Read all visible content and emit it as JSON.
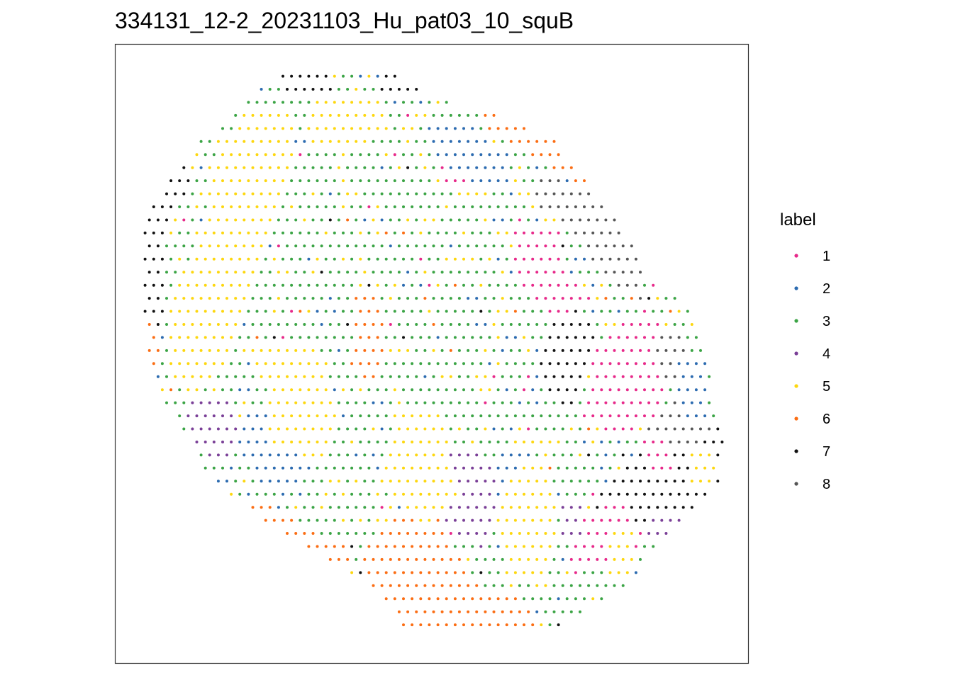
{
  "chart_data": {
    "type": "scatter",
    "title": "334131_12-2_20231103_Hu_pat03_10_squB",
    "xlabel": "",
    "ylabel": "",
    "axes_visible": false,
    "grid": false,
    "panel_border": true,
    "legend": {
      "title": "label",
      "position": "right",
      "entries": [
        {
          "label": "1",
          "color": "#e7298a"
        },
        {
          "label": "2",
          "color": "#2c6bb0"
        },
        {
          "label": "3",
          "color": "#3ba445"
        },
        {
          "label": "4",
          "color": "#7a3f97"
        },
        {
          "label": "5",
          "color": "#fdd70f"
        },
        {
          "label": "6",
          "color": "#fb6d13"
        },
        {
          "label": "7",
          "color": "#111111"
        },
        {
          "label": "8",
          "color": "#555555"
        }
      ]
    },
    "xlim": [
      0,
      100
    ],
    "ylim": [
      0,
      100
    ],
    "grid_spacing_x": 1.36,
    "grid_spacing_y": 2.11,
    "tissue_outline": [
      [
        27.1,
        95.9
      ],
      [
        34.3,
        96.4
      ],
      [
        44.3,
        94.9
      ],
      [
        53.5,
        90.3
      ],
      [
        62.5,
        87.9
      ],
      [
        69.3,
        84.5
      ],
      [
        79.4,
        71.6
      ],
      [
        84.7,
        62.1
      ],
      [
        90.7,
        57.1
      ],
      [
        92.6,
        53.3
      ],
      [
        95.5,
        37.4
      ],
      [
        96.4,
        34.8
      ],
      [
        95.4,
        29.6
      ],
      [
        86.4,
        19.0
      ],
      [
        78.6,
        10.8
      ],
      [
        69.1,
        5.5
      ],
      [
        55.9,
        4.2
      ],
      [
        45.5,
        6.0
      ],
      [
        40.1,
        12.5
      ],
      [
        34.0,
        15.9
      ],
      [
        23.5,
        22.5
      ],
      [
        15.1,
        29.8
      ],
      [
        9.9,
        38.7
      ],
      [
        5.0,
        47.2
      ],
      [
        4.6,
        56.8
      ],
      [
        4.6,
        71.7
      ],
      [
        9.2,
        79.6
      ],
      [
        14.5,
        85.4
      ],
      [
        21.6,
        91.6
      ]
    ],
    "regions": [
      {
        "label": "7",
        "points": [
          [
            3.0,
            80.0
          ],
          [
            9.0,
            84.0
          ],
          [
            14.0,
            90.0
          ],
          [
            16.0,
            96.0
          ],
          [
            3.0,
            96.0
          ]
        ]
      },
      {
        "label": "7",
        "points": [
          [
            3.0,
            47.0
          ],
          [
            8.0,
            54.0
          ],
          [
            8.0,
            70.0
          ],
          [
            12.0,
            78.0
          ],
          [
            10.0,
            82.0
          ],
          [
            3.0,
            77.0
          ]
        ]
      },
      {
        "label": "7",
        "points": [
          [
            26.0,
            97.0
          ],
          [
            33.0,
            97.0
          ],
          [
            35.0,
            92.0
          ],
          [
            26.0,
            92.0
          ]
        ]
      },
      {
        "label": "7",
        "points": [
          [
            42.0,
            96.0
          ],
          [
            48.0,
            96.0
          ],
          [
            48.0,
            92.0
          ],
          [
            42.0,
            92.0
          ]
        ]
      },
      {
        "label": "7",
        "points": [
          [
            74.0,
            24.0
          ],
          [
            82.0,
            34.0
          ],
          [
            88.0,
            40.0
          ],
          [
            94.0,
            41.0
          ],
          [
            97.0,
            34.0
          ],
          [
            95.0,
            28.0
          ],
          [
            88.0,
            22.0
          ],
          [
            82.0,
            18.0
          ],
          [
            76.0,
            18.0
          ]
        ]
      },
      {
        "label": "7",
        "points": [
          [
            67.0,
            52.0
          ],
          [
            72.0,
            58.0
          ],
          [
            76.0,
            55.0
          ],
          [
            74.0,
            44.0
          ],
          [
            71.0,
            40.0
          ],
          [
            67.0,
            45.0
          ]
        ]
      },
      {
        "label": "6",
        "points": [
          [
            58.0,
            92.0
          ],
          [
            72.0,
            88.0
          ],
          [
            76.0,
            86.0
          ],
          [
            80.0,
            80.0
          ],
          [
            80.0,
            72.0
          ],
          [
            74.0,
            76.0
          ],
          [
            66.0,
            82.0
          ],
          [
            58.0,
            86.0
          ]
        ]
      },
      {
        "label": "6",
        "points": [
          [
            38.0,
            18.0
          ],
          [
            44.0,
            24.0
          ],
          [
            50.0,
            26.0
          ],
          [
            54.0,
            18.0
          ],
          [
            58.0,
            12.0
          ],
          [
            66.0,
            10.0
          ],
          [
            68.0,
            4.0
          ],
          [
            55.0,
            3.0
          ],
          [
            44.0,
            6.0
          ],
          [
            40.0,
            12.0
          ]
        ]
      },
      {
        "label": "6",
        "points": [
          [
            15.0,
            26.0
          ],
          [
            24.0,
            26.0
          ],
          [
            30.0,
            22.0
          ],
          [
            38.0,
            18.0
          ],
          [
            34.0,
            14.0
          ],
          [
            22.0,
            20.0
          ],
          [
            13.0,
            28.0
          ]
        ]
      },
      {
        "label": "6",
        "points": [
          [
            3.5,
            47.0
          ],
          [
            5.5,
            56.0
          ],
          [
            7.0,
            50.0
          ],
          [
            5.5,
            44.0
          ]
        ]
      },
      {
        "label": "6",
        "points": [
          [
            38.0,
            60.0
          ],
          [
            42.0,
            60.0
          ],
          [
            43.0,
            50.0
          ],
          [
            41.0,
            44.0
          ],
          [
            37.0,
            48.0
          ]
        ]
      },
      {
        "label": "1",
        "points": [
          [
            51.0,
            82.0
          ],
          [
            58.0,
            82.0
          ],
          [
            58.0,
            76.0
          ],
          [
            51.0,
            76.0
          ]
        ]
      },
      {
        "label": "1",
        "points": [
          [
            63.0,
            72.0
          ],
          [
            70.0,
            70.0
          ],
          [
            72.0,
            62.0
          ],
          [
            76.0,
            58.0
          ],
          [
            68.0,
            56.0
          ],
          [
            63.0,
            62.0
          ]
        ]
      },
      {
        "label": "1",
        "points": [
          [
            74.0,
            40.0
          ],
          [
            76.0,
            52.0
          ],
          [
            84.0,
            58.0
          ],
          [
            88.0,
            52.0
          ],
          [
            86.0,
            42.0
          ],
          [
            80.0,
            36.0
          ]
        ]
      },
      {
        "label": "1",
        "points": [
          [
            83.0,
            40.0
          ],
          [
            88.0,
            40.0
          ],
          [
            88.0,
            30.0
          ],
          [
            84.0,
            30.0
          ]
        ]
      },
      {
        "label": "1",
        "points": [
          [
            72.0,
            24.0
          ],
          [
            80.0,
            26.0
          ],
          [
            84.0,
            20.0
          ],
          [
            80.0,
            14.0
          ],
          [
            72.0,
            16.0
          ]
        ]
      },
      {
        "label": "8",
        "points": [
          [
            66.0,
            80.0
          ],
          [
            76.0,
            76.0
          ],
          [
            82.0,
            68.0
          ],
          [
            84.0,
            58.0
          ],
          [
            79.0,
            60.0
          ],
          [
            72.0,
            70.0
          ],
          [
            66.0,
            74.0
          ]
        ]
      },
      {
        "label": "8",
        "points": [
          [
            84.0,
            52.0
          ],
          [
            90.0,
            54.0
          ],
          [
            92.0,
            46.0
          ],
          [
            88.0,
            44.0
          ]
        ]
      },
      {
        "label": "8",
        "points": [
          [
            84.0,
            38.0
          ],
          [
            90.0,
            44.0
          ],
          [
            94.0,
            38.0
          ],
          [
            90.0,
            34.0
          ]
        ]
      },
      {
        "label": "4",
        "points": [
          [
            11.0,
            44.0
          ],
          [
            18.0,
            44.0
          ],
          [
            20.0,
            36.0
          ],
          [
            16.0,
            32.0
          ],
          [
            11.0,
            36.0
          ]
        ]
      },
      {
        "label": "4",
        "points": [
          [
            52.0,
            34.0
          ],
          [
            58.0,
            34.0
          ],
          [
            62.0,
            26.0
          ],
          [
            58.0,
            18.0
          ],
          [
            52.0,
            22.0
          ]
        ]
      },
      {
        "label": "4",
        "points": [
          [
            70.0,
            26.0
          ],
          [
            74.0,
            26.0
          ],
          [
            74.0,
            20.0
          ],
          [
            70.0,
            20.0
          ]
        ]
      },
      {
        "label": "4",
        "points": [
          [
            84.0,
            24.0
          ],
          [
            90.0,
            24.0
          ],
          [
            90.0,
            20.0
          ],
          [
            84.0,
            20.0
          ]
        ]
      },
      {
        "label": "2",
        "points": [
          [
            48.0,
            87.0
          ],
          [
            57.0,
            87.0
          ],
          [
            62.0,
            82.0
          ],
          [
            62.0,
            76.0
          ],
          [
            58.0,
            76.0
          ],
          [
            50.0,
            82.0
          ]
        ]
      },
      {
        "label": "2",
        "points": [
          [
            20.0,
            40.0
          ],
          [
            28.0,
            40.0
          ],
          [
            32.0,
            30.0
          ],
          [
            24.0,
            28.0
          ],
          [
            19.0,
            34.0
          ]
        ]
      },
      {
        "label": "2",
        "points": [
          [
            60.0,
            34.0
          ],
          [
            66.0,
            34.0
          ],
          [
            66.0,
            26.0
          ],
          [
            60.0,
            26.0
          ]
        ]
      },
      {
        "label": "2",
        "points": [
          [
            88.0,
            50.0
          ],
          [
            93.0,
            50.0
          ],
          [
            94.0,
            40.0
          ],
          [
            90.0,
            38.0
          ]
        ]
      },
      {
        "label": "5",
        "points": [
          [
            9.0,
            60.0
          ],
          [
            14.0,
            70.0
          ],
          [
            16.0,
            84.0
          ],
          [
            22.0,
            90.0
          ],
          [
            28.0,
            90.0
          ],
          [
            28.0,
            80.0
          ],
          [
            24.0,
            70.0
          ],
          [
            20.0,
            56.0
          ],
          [
            16.0,
            46.0
          ],
          [
            10.0,
            46.0
          ],
          [
            8.0,
            54.0
          ]
        ]
      },
      {
        "label": "5",
        "points": [
          [
            32.0,
            92.0
          ],
          [
            42.0,
            92.0
          ],
          [
            44.0,
            86.0
          ],
          [
            36.0,
            82.0
          ],
          [
            30.0,
            86.0
          ]
        ]
      },
      {
        "label": "5",
        "points": [
          [
            24.0,
            52.0
          ],
          [
            32.0,
            52.0
          ],
          [
            36.0,
            40.0
          ],
          [
            32.0,
            32.0
          ],
          [
            24.0,
            36.0
          ]
        ]
      },
      {
        "label": "5",
        "points": [
          [
            44.0,
            40.0
          ],
          [
            52.0,
            40.0
          ],
          [
            54.0,
            26.0
          ],
          [
            48.0,
            22.0
          ],
          [
            42.0,
            30.0
          ]
        ]
      },
      {
        "label": "5",
        "points": [
          [
            62.0,
            30.0
          ],
          [
            68.0,
            34.0
          ],
          [
            70.0,
            22.0
          ],
          [
            68.0,
            12.0
          ],
          [
            62.0,
            14.0
          ],
          [
            60.0,
            22.0
          ]
        ]
      },
      {
        "label": "5",
        "points": [
          [
            78.0,
            22.0
          ],
          [
            82.0,
            22.0
          ],
          [
            82.0,
            14.0
          ],
          [
            78.0,
            14.0
          ]
        ]
      },
      {
        "label": "5",
        "points": [
          [
            91.0,
            34.0
          ],
          [
            95.0,
            34.0
          ],
          [
            95.0,
            28.0
          ],
          [
            91.0,
            28.0
          ]
        ]
      }
    ],
    "point_size": 3.2,
    "summary_note": ""
  }
}
